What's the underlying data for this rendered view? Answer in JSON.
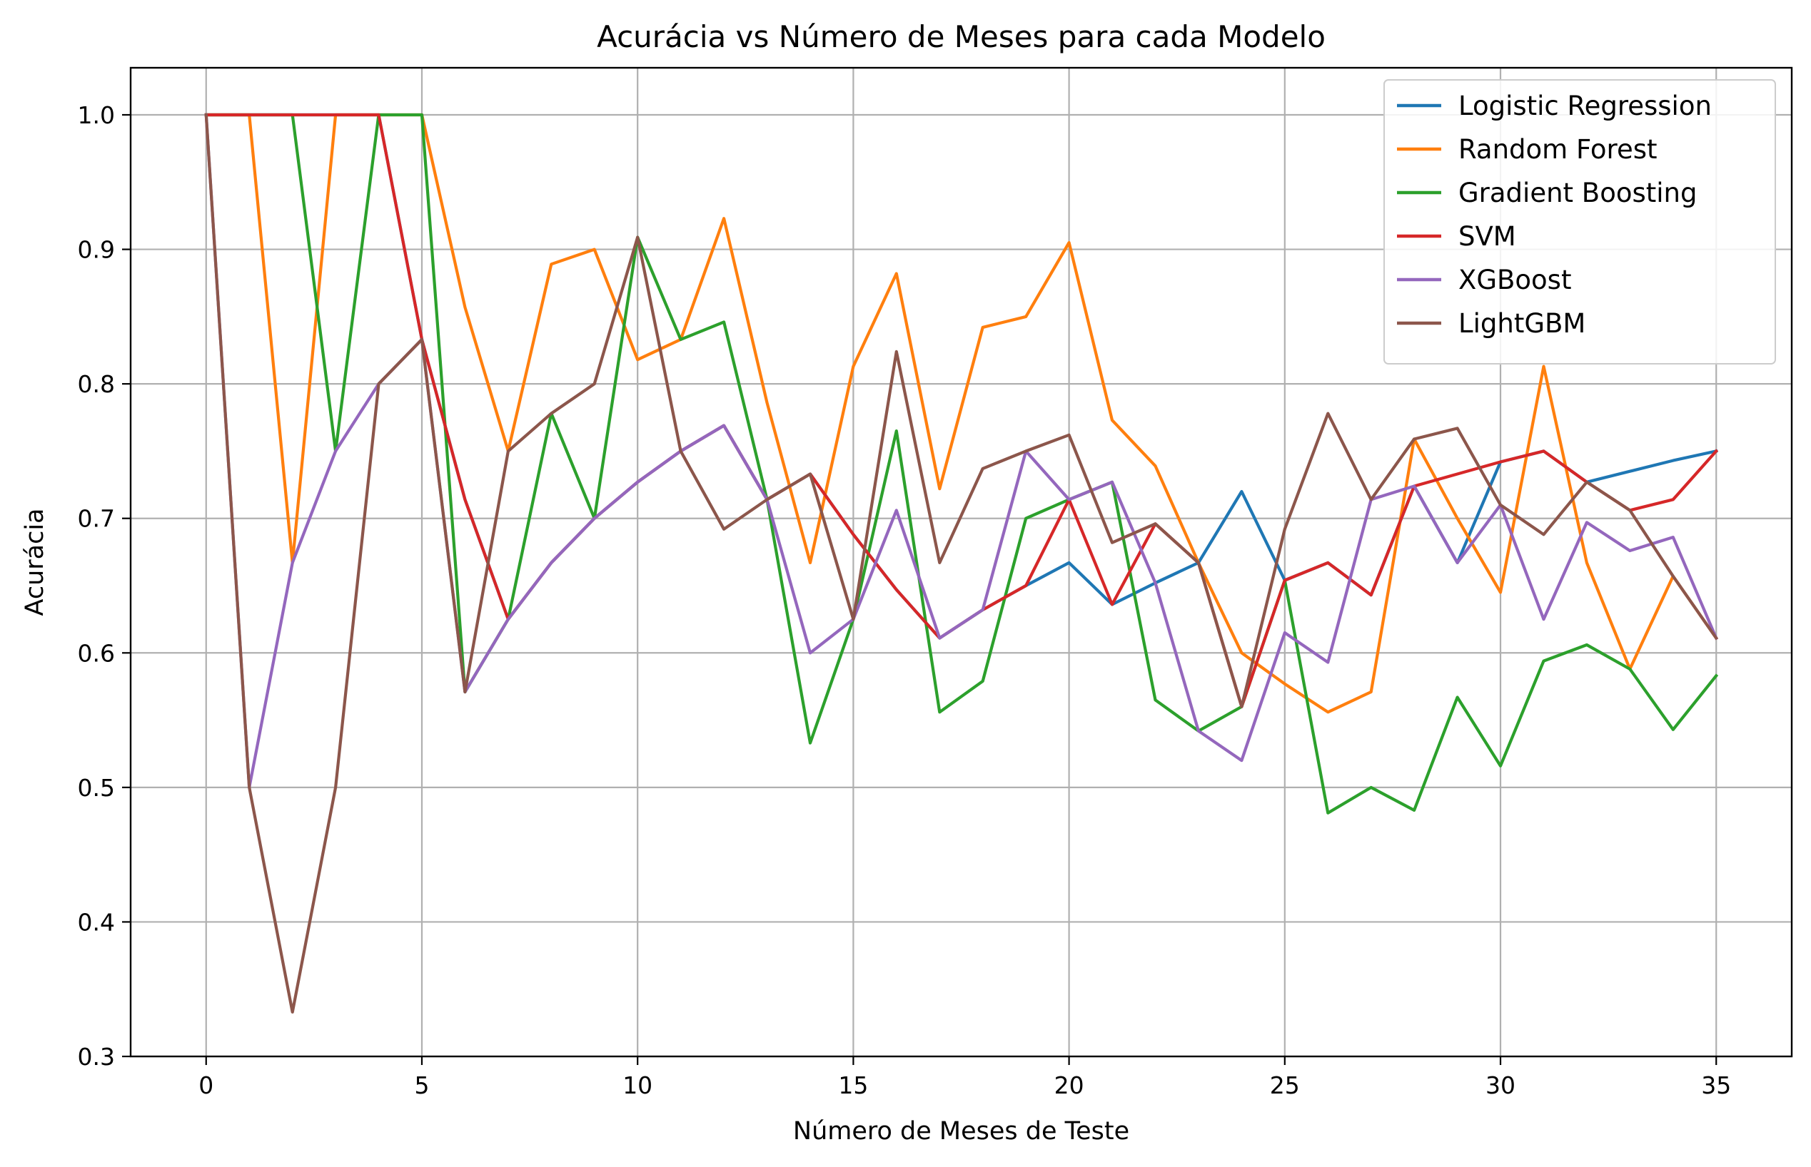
{
  "chart_data": {
    "type": "line",
    "title": "Acurácia vs Número de Meses para cada Modelo",
    "xlabel": "Número de Meses de Teste",
    "ylabel": "Acurácia",
    "xlim": [
      -1.75,
      36.75
    ],
    "ylim": [
      0.3,
      1.035
    ],
    "xticks": [
      0,
      5,
      10,
      15,
      20,
      25,
      30,
      35
    ],
    "yticks": [
      0.3,
      0.4,
      0.5,
      0.6,
      0.7,
      0.8,
      0.9,
      1.0
    ],
    "xtick_labels": [
      "0",
      "5",
      "10",
      "15",
      "20",
      "25",
      "30",
      "35"
    ],
    "ytick_labels": [
      "0.3",
      "0.4",
      "0.5",
      "0.6",
      "0.7",
      "0.8",
      "0.9",
      "1.0"
    ],
    "grid": true,
    "legend_position": "top-right",
    "x": [
      0,
      1,
      2,
      3,
      4,
      5,
      6,
      7,
      8,
      9,
      10,
      11,
      12,
      13,
      14,
      15,
      16,
      17,
      18,
      19,
      20,
      21,
      22,
      23,
      24,
      25,
      26,
      27,
      28,
      29,
      30,
      31,
      32,
      33,
      34,
      35
    ],
    "series": [
      {
        "name": "Logistic Regression",
        "color": "#1f77b4",
        "values": [
          1.0,
          1.0,
          1.0,
          1.0,
          1.0,
          0.833,
          0.714,
          0.625,
          0.667,
          0.7,
          0.727,
          0.75,
          0.769,
          0.714,
          0.733,
          0.688,
          0.647,
          0.611,
          0.632,
          0.65,
          0.667,
          0.636,
          0.652,
          0.667,
          0.72,
          0.654,
          0.667,
          0.643,
          0.724,
          0.667,
          0.742,
          0.75,
          0.727,
          0.735,
          0.743,
          0.75
        ]
      },
      {
        "name": "Random Forest",
        "color": "#ff7f0e",
        "values": [
          1.0,
          1.0,
          0.667,
          1.0,
          1.0,
          1.0,
          0.857,
          0.75,
          0.889,
          0.9,
          0.818,
          0.833,
          0.923,
          0.786,
          0.667,
          0.813,
          0.882,
          0.722,
          0.842,
          0.85,
          0.905,
          0.773,
          0.739,
          0.667,
          0.6,
          0.577,
          0.556,
          0.571,
          0.759,
          0.7,
          0.645,
          0.813,
          0.667,
          0.588,
          0.657,
          0.611
        ]
      },
      {
        "name": "Gradient Boosting",
        "color": "#2ca02c",
        "values": [
          1.0,
          1.0,
          1.0,
          0.75,
          1.0,
          1.0,
          0.571,
          0.625,
          0.778,
          0.7,
          0.909,
          0.833,
          0.846,
          0.714,
          0.533,
          0.625,
          0.765,
          0.556,
          0.579,
          0.7,
          0.714,
          0.727,
          0.565,
          0.542,
          0.56,
          0.654,
          0.481,
          0.5,
          0.483,
          0.567,
          0.516,
          0.594,
          0.606,
          0.588,
          0.543,
          0.583
        ]
      },
      {
        "name": "SVM",
        "color": "#d62728",
        "values": [
          1.0,
          1.0,
          1.0,
          1.0,
          1.0,
          0.833,
          0.714,
          0.625,
          0.667,
          0.7,
          0.727,
          0.75,
          0.769,
          0.714,
          0.733,
          0.688,
          0.647,
          0.611,
          0.632,
          0.65,
          0.714,
          0.636,
          0.696,
          0.667,
          0.56,
          0.654,
          0.667,
          0.643,
          0.724,
          0.733,
          0.742,
          0.75,
          0.727,
          0.706,
          0.714,
          0.75
        ]
      },
      {
        "name": "XGBoost",
        "color": "#9467bd",
        "values": [
          1.0,
          0.5,
          0.667,
          0.75,
          0.8,
          0.833,
          0.571,
          0.625,
          0.667,
          0.7,
          0.727,
          0.75,
          0.769,
          0.714,
          0.6,
          0.625,
          0.706,
          0.611,
          0.632,
          0.75,
          0.714,
          0.727,
          0.652,
          0.542,
          0.52,
          0.615,
          0.593,
          0.714,
          0.724,
          0.667,
          0.71,
          0.625,
          0.697,
          0.676,
          0.686,
          0.611
        ]
      },
      {
        "name": "LightGBM",
        "color": "#8c564b",
        "values": [
          1.0,
          0.5,
          0.333,
          0.5,
          0.8,
          0.833,
          0.571,
          0.75,
          0.778,
          0.8,
          0.909,
          0.75,
          0.692,
          0.714,
          0.733,
          0.625,
          0.824,
          0.667,
          0.737,
          0.75,
          0.762,
          0.682,
          0.696,
          0.667,
          0.56,
          0.692,
          0.778,
          0.714,
          0.759,
          0.767,
          0.71,
          0.688,
          0.727,
          0.706,
          0.657,
          0.611
        ]
      }
    ]
  }
}
